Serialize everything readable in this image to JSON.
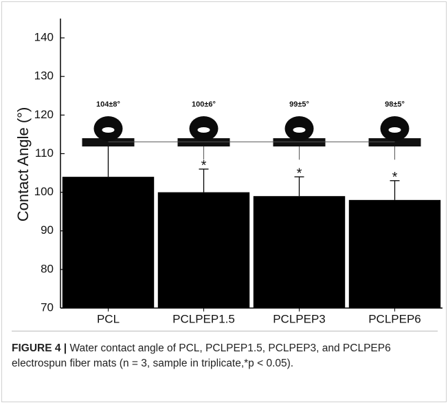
{
  "chart_data": {
    "type": "bar",
    "y_label": "Contact Angle (°)",
    "categories": [
      "PCL",
      "PCLPEP1.5",
      "PCLPEP3",
      "PCLPEP6"
    ],
    "values": [
      104,
      100,
      99,
      98
    ],
    "errors": [
      8,
      6,
      5,
      5
    ],
    "value_labels": [
      "104±8°",
      "100±6°",
      "99±5°",
      "98±5°"
    ],
    "significance": [
      null,
      "*",
      "*",
      "*"
    ],
    "color": "#000000",
    "ylim": [
      70,
      145
    ],
    "yticks": [
      70,
      80,
      90,
      100,
      110,
      120,
      130,
      140
    ]
  },
  "caption": {
    "label": "FIGURE 4 |",
    "text": "Water contact angle of PCL, PCLPEP1.5, PCLPEP3, and PCLPEP6 electrospun fiber mats (n = 3, sample in triplicate,*p < 0.05)."
  }
}
